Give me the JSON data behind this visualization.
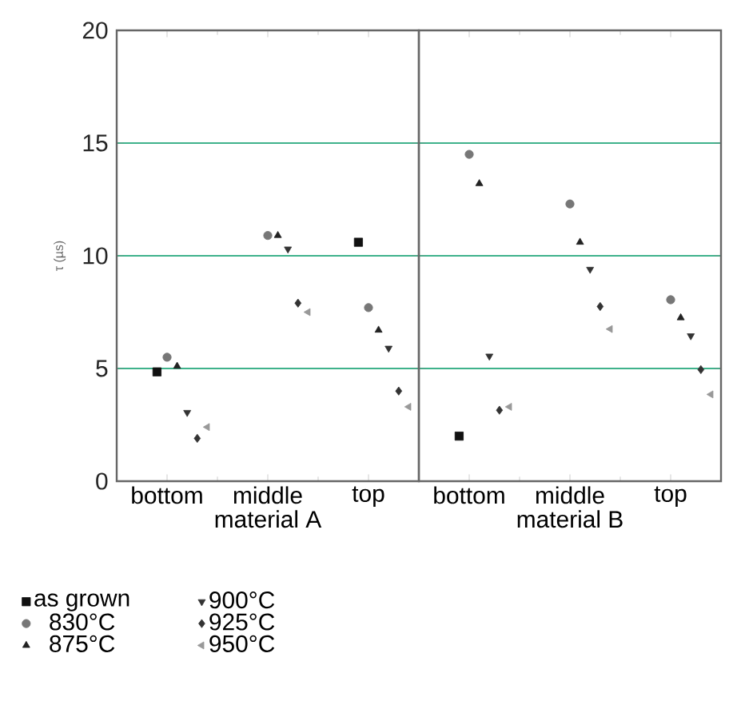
{
  "chart_data": [
    {
      "type": "scatter",
      "xlabel": "material A",
      "ylabel": "τ (µs)",
      "categories": [
        "bottom",
        "middle",
        "top"
      ],
      "ylim": [
        0,
        20
      ],
      "yticks": [
        0,
        5,
        10,
        15,
        20
      ],
      "grid": "y",
      "legend": "bottom",
      "series": [
        {
          "name": "as grown",
          "color": "#111111",
          "marker": "square",
          "values": [
            4.85,
            null,
            10.6
          ]
        },
        {
          "name": "830°C",
          "color": "#777777",
          "marker": "circle",
          "values": [
            5.5,
            10.9,
            7.7
          ]
        },
        {
          "name": "875°C",
          "color": "#222222",
          "marker": "triangle",
          "values": [
            5.1,
            10.9,
            6.7
          ]
        },
        {
          "name": "900°C",
          "color": "#333333",
          "marker": "triangle-down",
          "values": [
            3.05,
            10.3,
            5.9
          ]
        },
        {
          "name": "925°C",
          "color": "#333333",
          "marker": "diamond",
          "values": [
            1.9,
            7.9,
            4.0
          ]
        },
        {
          "name": "950°C",
          "color": "#999999",
          "marker": "triangle-left",
          "values": [
            2.4,
            7.5,
            3.3
          ]
        }
      ]
    },
    {
      "type": "scatter",
      "xlabel": "material B",
      "categories": [
        "bottom",
        "middle",
        "top"
      ],
      "ylim": [
        0,
        20
      ],
      "yticks": [
        0,
        5,
        10,
        15,
        20
      ],
      "grid": "y",
      "tick_labels": "x",
      "series": [
        {
          "color": "#111111",
          "marker": "square",
          "values": [
            2.0,
            null,
            null
          ]
        },
        {
          "color": "#777777",
          "marker": "circle",
          "values": [
            14.5,
            12.3,
            8.05
          ]
        },
        {
          "color": "#222222",
          "marker": "triangle",
          "values": [
            13.2,
            10.6,
            7.25
          ]
        },
        {
          "color": "#333333",
          "marker": "triangle-down",
          "values": [
            5.55,
            9.4,
            6.45
          ]
        },
        {
          "color": "#333333",
          "marker": "diamond",
          "values": [
            3.15,
            7.75,
            4.95
          ]
        },
        {
          "color": "#999999",
          "marker": "triangle-left",
          "values": [
            3.3,
            6.75,
            3.85
          ]
        }
      ]
    }
  ]
}
